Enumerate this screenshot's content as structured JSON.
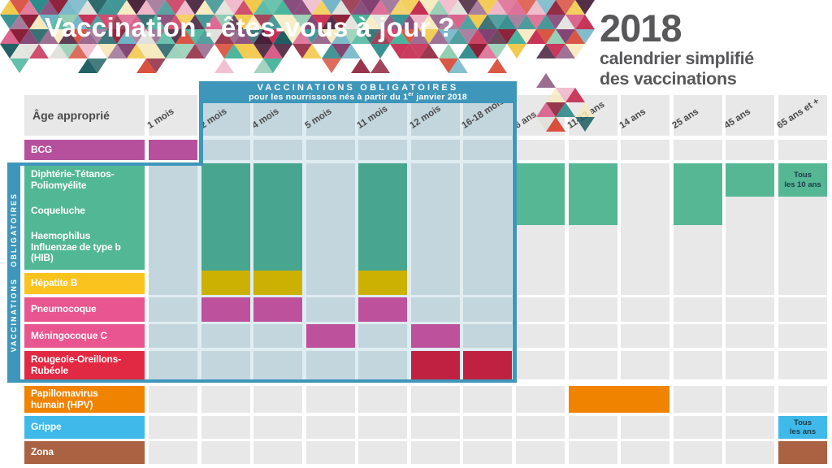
{
  "title": "Vaccination : êtes-vous à jour ?",
  "year_panel": {
    "year": "2018",
    "line1": "calendrier simplifié",
    "line2": "des vaccinations"
  },
  "zone": {
    "title": "VACCINATIONS OBLIGATOIRES",
    "subtitle_prefix": "pour les nourrissons nés à partir du 1",
    "subtitle_sup": "er",
    "subtitle_suffix": " janvier 2018",
    "side_label": "VACCINATIONS OBLIGATOIRES"
  },
  "grid": {
    "age_header": "Âge approprié",
    "columns": [
      "1 mois",
      "2 mois",
      "4 mois",
      "5 mois",
      "11 mois",
      "12 mois",
      "16-18 mois",
      "6 ans",
      "11-13 ans",
      "14 ans",
      "25 ans",
      "45 ans",
      "65 ans et +"
    ],
    "rows": [
      {
        "id": "bcg",
        "color": "magenta",
        "lines": [
          "BCG"
        ]
      },
      {
        "id": "dtp",
        "color": "green_label",
        "lines": [
          "Diphtérie-Tétanos-",
          "Poliomyélite"
        ]
      },
      {
        "id": "coq",
        "color": "green_label",
        "lines": [
          "Coqueluche"
        ]
      },
      {
        "id": "hib",
        "color": "green_label",
        "lines": [
          "Haemophilus",
          "Influenzae de type b",
          "(HIB)"
        ]
      },
      {
        "id": "hep",
        "color": "yellow_label",
        "lines": [
          "Hépatite B"
        ]
      },
      {
        "id": "pneumo",
        "color": "pink_label",
        "lines": [
          "Pneumocoque"
        ]
      },
      {
        "id": "menin",
        "color": "pink_label",
        "lines": [
          "Méningocoque C"
        ]
      },
      {
        "id": "roug",
        "color": "red_label",
        "lines": [
          "Rougeole-Oreillons-",
          "Rubéole"
        ]
      },
      {
        "id": "hpv",
        "color": "orange",
        "lines": [
          "Papillomavirus",
          "humain (HPV)"
        ]
      },
      {
        "id": "grippe",
        "color": "sky",
        "lines": [
          "Grippe"
        ]
      },
      {
        "id": "zona",
        "color": "brown",
        "lines": [
          "Zona"
        ]
      }
    ],
    "fills": [
      {
        "row": "bcg",
        "ages": [
          "1 mois"
        ],
        "color": "magenta"
      },
      {
        "row": "dtp3",
        "ages": [
          "2 mois",
          "4 mois",
          "11 mois"
        ],
        "color": "green_zone"
      },
      {
        "row": "hepfill",
        "ages": [
          "2 mois",
          "4 mois",
          "11 mois"
        ],
        "color": "yellow_cell"
      },
      {
        "row": "pneumo",
        "ages": [
          "2 mois",
          "4 mois",
          "11 mois"
        ],
        "color": "magenta_cell"
      },
      {
        "row": "menin",
        "ages": [
          "5 mois",
          "12 mois"
        ],
        "color": "magenta_cell"
      },
      {
        "row": "roug",
        "ages": [
          "12 mois",
          "16-18 mois"
        ],
        "color": "red_cell"
      },
      {
        "row": "dtp2",
        "ages": [
          "6 ans",
          "11-13 ans",
          "25 ans"
        ],
        "color": "green_out"
      },
      {
        "row": "dtp1",
        "ages": [
          "45 ans"
        ],
        "color": "green_out"
      },
      {
        "row": "dtp1",
        "ages": [
          "65 ans et +"
        ],
        "color": "green_out",
        "note": [
          "Tous",
          "les 10 ans"
        ]
      },
      {
        "row": "hpv",
        "ages": [
          "11-13 ans",
          "14 ans"
        ],
        "color": "orange",
        "merge": true
      },
      {
        "row": "grippe",
        "ages": [
          "65 ans et +"
        ],
        "color": "sky",
        "note": [
          "Tous",
          "les ans"
        ]
      },
      {
        "row": "zona",
        "ages": [
          "65 ans et +"
        ],
        "color": "brown"
      }
    ]
  },
  "chart_data": {
    "type": "table",
    "title": "Vaccination : êtes-vous à jour ? — 2018 calendrier simplifié des vaccinations",
    "columns": [
      "1 mois",
      "2 mois",
      "4 mois",
      "5 mois",
      "11 mois",
      "12 mois",
      "16-18 mois",
      "6 ans",
      "11-13 ans",
      "14 ans",
      "25 ans",
      "45 ans",
      "65 ans et +"
    ],
    "mandatory_zone": "Vaccinations obligatoires pour les nourrissons nés à partir du 1er janvier 2018 (2 mois à 16-18 mois)",
    "doses": [
      {
        "vaccine": "BCG",
        "ages": [
          "1 mois"
        ]
      },
      {
        "vaccine": "Diphtérie-Tétanos-Poliomyélite",
        "ages": [
          "2 mois",
          "4 mois",
          "11 mois",
          "6 ans",
          "11-13 ans",
          "25 ans",
          "45 ans",
          "65 ans et +"
        ],
        "note_65": "Tous les 10 ans"
      },
      {
        "vaccine": "Coqueluche",
        "ages": [
          "2 mois",
          "4 mois",
          "11 mois",
          "6 ans",
          "11-13 ans",
          "25 ans"
        ]
      },
      {
        "vaccine": "Haemophilus Influenzae de type b (HIB)",
        "ages": [
          "2 mois",
          "4 mois",
          "11 mois"
        ]
      },
      {
        "vaccine": "Hépatite B",
        "ages": [
          "2 mois",
          "4 mois",
          "11 mois"
        ]
      },
      {
        "vaccine": "Pneumocoque",
        "ages": [
          "2 mois",
          "4 mois",
          "11 mois"
        ]
      },
      {
        "vaccine": "Méningocoque C",
        "ages": [
          "5 mois",
          "12 mois"
        ]
      },
      {
        "vaccine": "Rougeole-Oreillons-Rubéole",
        "ages": [
          "12 mois",
          "16-18 mois"
        ]
      },
      {
        "vaccine": "Papillomavirus humain (HPV)",
        "ages": [
          "11-13 ans",
          "14 ans"
        ]
      },
      {
        "vaccine": "Grippe",
        "ages": [
          "65 ans et +"
        ],
        "note_65": "Tous les ans"
      },
      {
        "vaccine": "Zona",
        "ages": [
          "65 ans et +"
        ]
      }
    ]
  },
  "colors": {
    "zone_blue": "#3e96ba",
    "backdrop": "#dfecf1",
    "cell_blue": "#c3d6de",
    "cell_gray": "#e8e8e8",
    "magenta": "#b6509c",
    "magenta_cell": "#bd519b",
    "pink_label": "#e8558f",
    "green_label": "#52b794",
    "green_zone": "#48a68f",
    "green_out": "#56b795",
    "yellow_label": "#fbc31d",
    "yellow_cell": "#ccb103",
    "red_label": "#e22944",
    "red_cell": "#bf2241",
    "orange": "#f08300",
    "sky": "#3fb9e9",
    "brown": "#aa6242",
    "note_text": "#1d3b49",
    "header_text": "#4a4a4c",
    "title_gray": "#58585a"
  },
  "decor": {
    "mosaic_palette": [
      "#c52d52",
      "#8c1f38",
      "#d95f8a",
      "#eeb3c6",
      "#2e8b8b",
      "#1f5f63",
      "#46b39a",
      "#8fcbb0",
      "#f2c94c",
      "#f6e9bd",
      "#7d3c6e",
      "#47203a",
      "#d94f3d",
      "#6ab0c4",
      "#9a6a8f",
      "#e0e0da"
    ]
  }
}
